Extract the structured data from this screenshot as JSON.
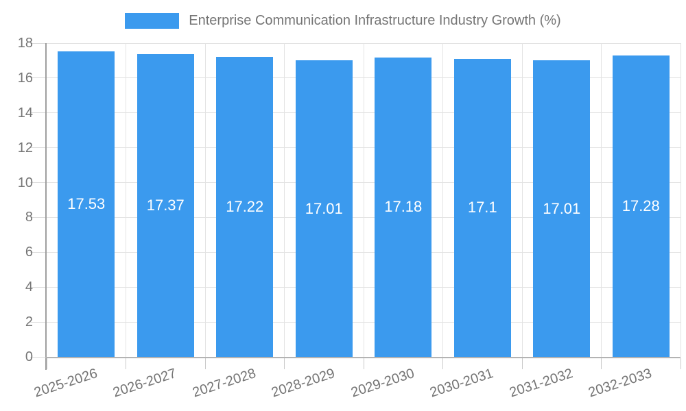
{
  "chart_data": {
    "type": "bar",
    "title": "Enterprise Communication Infrastructure Industry Growth (%)",
    "legend_position": "top",
    "categories": [
      "2025-2026",
      "2026-2027",
      "2027-2028",
      "2028-2029",
      "2029-2030",
      "2030-2031",
      "2031-2032",
      "2032-2033"
    ],
    "series": [
      {
        "name": "Enterprise Communication Infrastructure Industry Growth (%)",
        "values": [
          17.53,
          17.37,
          17.22,
          17.01,
          17.18,
          17.1,
          17.01,
          17.28
        ],
        "value_labels": [
          "17.53",
          "17.37",
          "17.22",
          "17.01",
          "17.18",
          "17.1",
          "17.01",
          "17.28"
        ]
      }
    ],
    "xlabel": "",
    "ylabel": "",
    "ylim": [
      0,
      18
    ],
    "yticks": [
      0,
      2,
      4,
      6,
      8,
      10,
      12,
      14,
      16,
      18
    ],
    "grid": true,
    "value_labels_position": "inside-center",
    "colors": {
      "bar": "#3b9aee",
      "grid": "#e3e3e3",
      "y_tick": "#dcdcdc",
      "x_tick": "#c9c9c9",
      "y_axis": "#9e9e9e",
      "x_axis": "#b3b3b3",
      "text": "#757575",
      "value_text": "#ffffff",
      "background": "#ffffff"
    }
  }
}
